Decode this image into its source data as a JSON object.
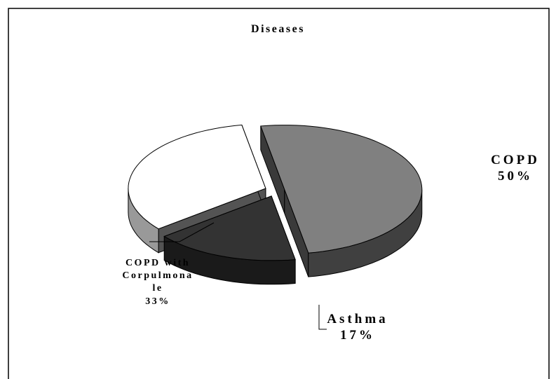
{
  "chart_data": {
    "type": "pie",
    "title": "Diseases",
    "categories": [
      "COPD",
      "Asthma",
      "COPD with Corpulmonale"
    ],
    "values": [
      50,
      17,
      33
    ],
    "value_labels": [
      "50%",
      "17%",
      "33%"
    ],
    "colors": [
      "#808080",
      "#333333",
      "#ffffff"
    ]
  }
}
